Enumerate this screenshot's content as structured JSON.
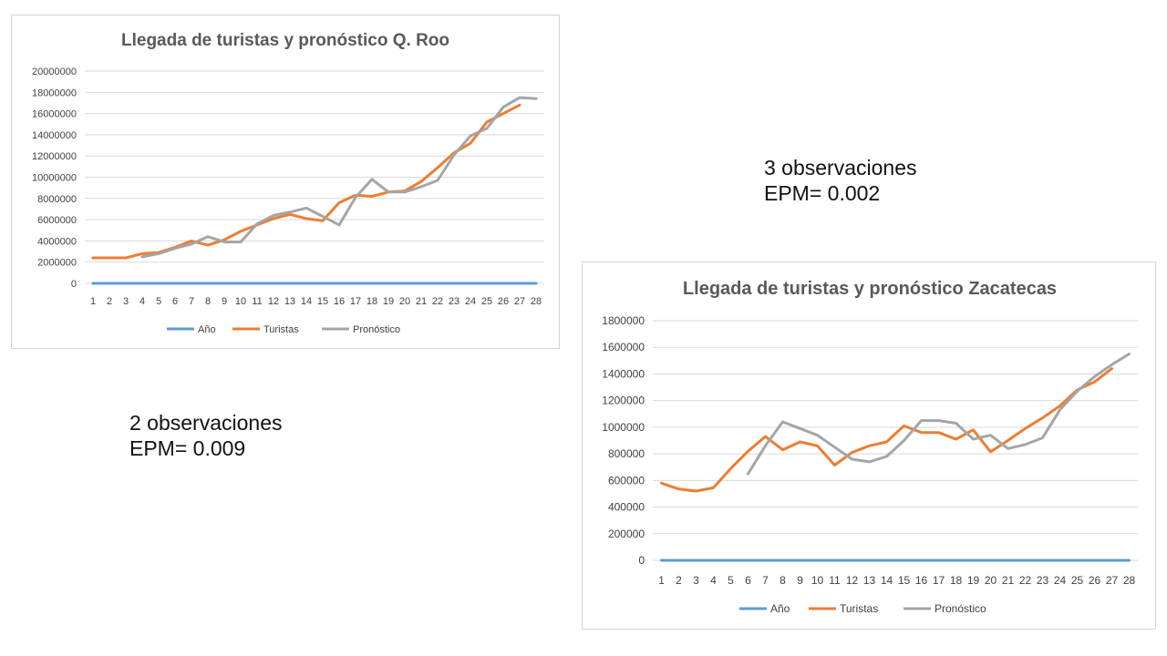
{
  "notes": [
    {
      "line1": "3 observaciones",
      "line2": "EPM= 0.002"
    },
    {
      "line1": "2 observaciones",
      "line2": "EPM= 0.009"
    }
  ],
  "colors": {
    "anio": "#5b9bd5",
    "turistas": "#ed7d31",
    "pronostico": "#a5a5a5",
    "grid": "#d9d9d9"
  },
  "chart_data": [
    {
      "type": "line",
      "title": "Llegada de turistas y pronóstico Q. Roo",
      "categories": [
        "1",
        "2",
        "3",
        "4",
        "5",
        "6",
        "7",
        "8",
        "9",
        "10",
        "11",
        "12",
        "13",
        "14",
        "15",
        "16",
        "17",
        "18",
        "19",
        "20",
        "21",
        "22",
        "23",
        "24",
        "25",
        "26",
        "27",
        "28"
      ],
      "ylim": [
        0,
        20000000
      ],
      "yticks": [
        "0",
        "2000000",
        "4000000",
        "6000000",
        "8000000",
        "10000000",
        "12000000",
        "14000000",
        "16000000",
        "18000000",
        "20000000"
      ],
      "legend_position": "bottom",
      "grid": true,
      "series": [
        {
          "name": "Año",
          "color": "#5b9bd5",
          "values": [
            1,
            2,
            3,
            4,
            5,
            6,
            7,
            8,
            9,
            10,
            11,
            12,
            13,
            14,
            15,
            16,
            17,
            18,
            19,
            20,
            21,
            22,
            23,
            24,
            25,
            26,
            27,
            28
          ]
        },
        {
          "name": "Turistas",
          "color": "#ed7d31",
          "values": [
            2400000,
            2400000,
            2400000,
            2800000,
            2900000,
            3400000,
            4000000,
            3600000,
            4100000,
            4900000,
            5500000,
            6100000,
            6500000,
            6100000,
            5900000,
            7600000,
            8300000,
            8200000,
            8600000,
            8700000,
            9600000,
            10900000,
            12300000,
            13200000,
            15200000,
            16000000,
            16800000,
            null
          ]
        },
        {
          "name": "Pronóstico",
          "color": "#a5a5a5",
          "values": [
            null,
            null,
            null,
            2500000,
            2800000,
            3300000,
            3700000,
            4400000,
            3900000,
            3900000,
            5600000,
            6400000,
            6700000,
            7100000,
            6300000,
            5500000,
            8100000,
            9800000,
            8600000,
            8600000,
            9100000,
            9700000,
            12100000,
            13900000,
            14600000,
            16600000,
            17500000,
            17400000
          ]
        }
      ]
    },
    {
      "type": "line",
      "title": "Llegada de turistas y pronóstico Zacatecas",
      "categories": [
        "1",
        "2",
        "3",
        "4",
        "5",
        "6",
        "7",
        "8",
        "9",
        "10",
        "11",
        "12",
        "13",
        "14",
        "15",
        "16",
        "17",
        "18",
        "19",
        "20",
        "21",
        "22",
        "23",
        "24",
        "25",
        "26",
        "27",
        "28"
      ],
      "ylim": [
        0,
        1800000
      ],
      "yticks": [
        "0",
        "200000",
        "400000",
        "600000",
        "800000",
        "1000000",
        "1200000",
        "1400000",
        "1600000",
        "1800000"
      ],
      "legend_position": "bottom",
      "grid": true,
      "series": [
        {
          "name": "Año",
          "color": "#5b9bd5",
          "values": [
            1,
            2,
            3,
            4,
            5,
            6,
            7,
            8,
            9,
            10,
            11,
            12,
            13,
            14,
            15,
            16,
            17,
            18,
            19,
            20,
            21,
            22,
            23,
            24,
            25,
            26,
            27,
            28
          ]
        },
        {
          "name": "Turistas",
          "color": "#ed7d31",
          "values": [
            580000,
            535000,
            520000,
            545000,
            690000,
            820000,
            930000,
            830000,
            890000,
            860000,
            715000,
            810000,
            860000,
            890000,
            1010000,
            960000,
            960000,
            910000,
            980000,
            815000,
            900000,
            990000,
            1070000,
            1160000,
            1280000,
            1340000,
            1440000,
            null
          ]
        },
        {
          "name": "Pronóstico",
          "color": "#a5a5a5",
          "values": [
            null,
            null,
            null,
            null,
            null,
            650000,
            860000,
            1040000,
            990000,
            940000,
            850000,
            760000,
            740000,
            780000,
            900000,
            1050000,
            1050000,
            1030000,
            910000,
            940000,
            840000,
            870000,
            920000,
            1130000,
            1270000,
            1380000,
            1470000,
            1550000
          ]
        }
      ]
    }
  ]
}
